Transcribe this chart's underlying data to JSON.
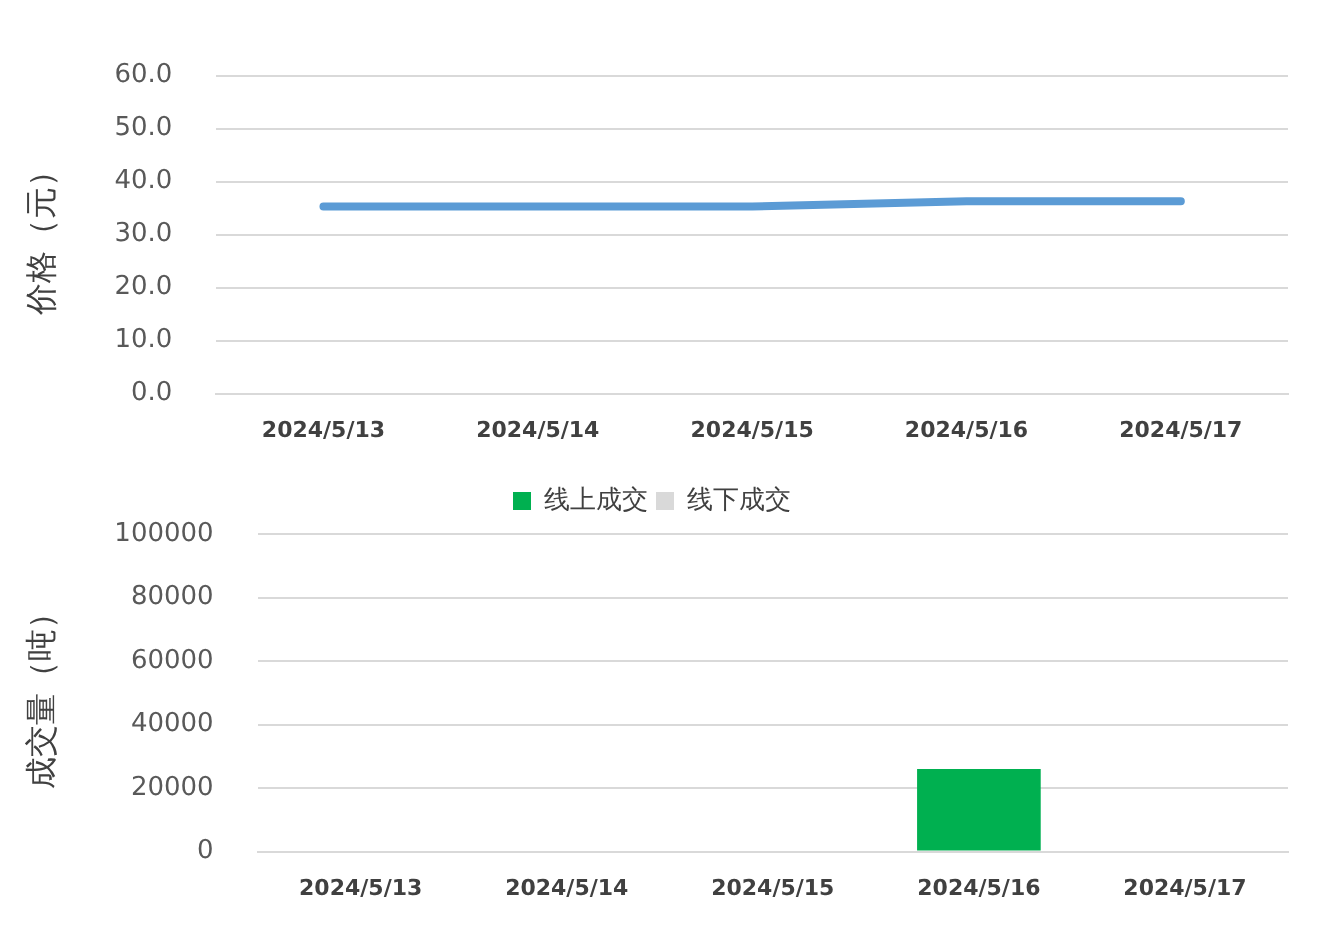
{
  "chart_data": [
    {
      "type": "line",
      "ylabel": "价格（元）",
      "categories": [
        "2024/5/13",
        "2024/5/14",
        "2024/5/15",
        "2024/5/16",
        "2024/5/17"
      ],
      "series": [
        {
          "color": "#5b9bd5",
          "values": [
            35.3,
            35.3,
            35.3,
            36.3,
            36.3
          ]
        }
      ],
      "ylim": [
        0,
        60
      ],
      "yticks": [
        {
          "value": 0,
          "label": "0.0"
        },
        {
          "value": 10,
          "label": "10.0"
        },
        {
          "value": 20,
          "label": "20.0"
        },
        {
          "value": 30,
          "label": "30.0"
        },
        {
          "value": 40,
          "label": "40.0"
        },
        {
          "value": 50,
          "label": "50.0"
        },
        {
          "value": 60,
          "label": "60.0"
        }
      ],
      "grid": "y",
      "marker": "none",
      "line_style": "solid"
    },
    {
      "type": "bar",
      "ylabel": "成交量（吨）",
      "categories": [
        "2024/5/13",
        "2024/5/14",
        "2024/5/15",
        "2024/5/16",
        "2024/5/17"
      ],
      "series": [
        {
          "name": "线上成交",
          "color": "#00b050",
          "values": [
            0,
            0,
            0,
            26000,
            0
          ]
        },
        {
          "name": "线下成交",
          "color": "#d9d9d9",
          "values": [
            0,
            0,
            0,
            0,
            0
          ]
        }
      ],
      "ylim": [
        0,
        100000
      ],
      "yticks": [
        0,
        20000,
        40000,
        60000,
        80000,
        100000
      ],
      "grid": "y",
      "legend": "top"
    }
  ]
}
